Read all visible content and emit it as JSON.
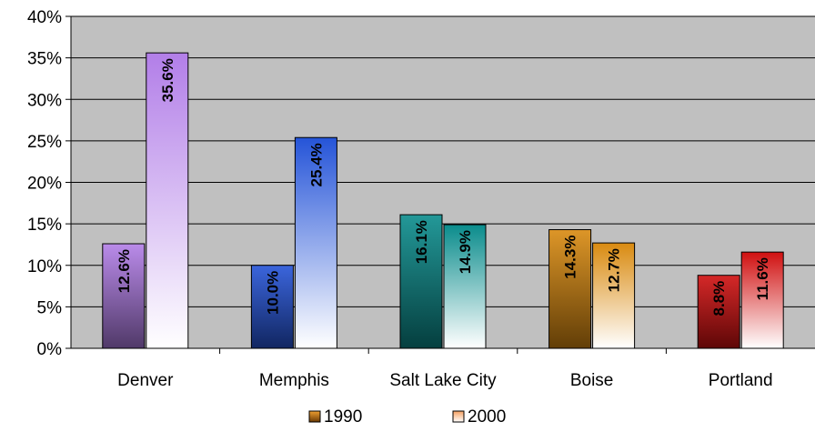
{
  "chart_data": {
    "type": "bar",
    "categories": [
      "Denver",
      "Memphis",
      "Salt Lake City",
      "Boise",
      "Portland"
    ],
    "series": [
      {
        "name": "1990",
        "values": [
          12.6,
          10.0,
          16.1,
          14.3,
          8.8
        ],
        "labels": [
          "12.6%",
          "10.0%",
          "16.1%",
          "14.3%",
          "8.8%"
        ]
      },
      {
        "name": "2000",
        "values": [
          35.6,
          25.4,
          14.9,
          12.7,
          11.6
        ],
        "labels": [
          "35.6%",
          "25.4%",
          "14.9%",
          "12.7%",
          "11.6%"
        ]
      }
    ],
    "category_colors": [
      "#b27ee8",
      "#2554d8",
      "#0a8c8c",
      "#d98a10",
      "#d01010"
    ],
    "ylim": [
      0,
      40
    ],
    "yticks": [
      0,
      5,
      10,
      15,
      20,
      25,
      30,
      35,
      40
    ],
    "ytick_labels": [
      "0%",
      "5%",
      "10%",
      "15%",
      "20%",
      "25%",
      "30%",
      "35%",
      "40%"
    ],
    "grid": true,
    "legend_position": "bottom",
    "plot_background": "#c0c0c0",
    "legend_swatch_colors": [
      "#b86a10",
      "#fbc89a"
    ]
  }
}
